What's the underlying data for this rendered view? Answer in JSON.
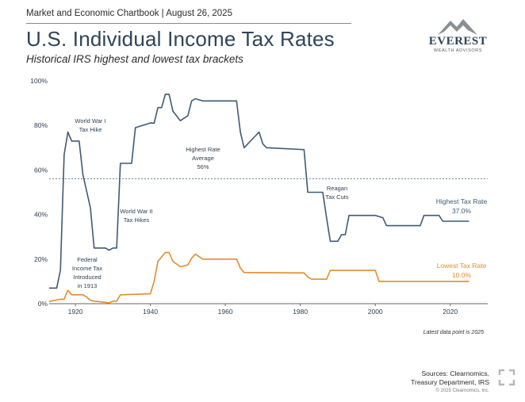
{
  "header": {
    "overline": "Market and Economic Chartbook | August 26, 2025",
    "title": "U.S. Individual Income Tax Rates",
    "subtitle": "Historical IRS highest and lowest tax brackets"
  },
  "logo": {
    "name": "EVEREST",
    "tagline": "WEALTH ADVISORS"
  },
  "footer": {
    "note": "Latest data point is 2025",
    "sources_line1": "Sources: Clearnomics,",
    "sources_line2": "Treasury Department, IRS",
    "copyright": "© 2025 Clearnomics, Inc."
  },
  "colors": {
    "highest": "#3f5a72",
    "lowest": "#e58c2e",
    "axis": "#666666",
    "average": "#3f5a72"
  },
  "chart_data": {
    "type": "line",
    "xlim": [
      1913,
      2030
    ],
    "ylim": [
      0,
      100
    ],
    "x_ticks": [
      "1920",
      "1940",
      "1960",
      "1980",
      "2000",
      "2020"
    ],
    "y_ticks": [
      "0%",
      "20%",
      "40%",
      "60%",
      "80%",
      "100%"
    ],
    "grid": false,
    "series": [
      {
        "name": "Highest Tax Rate",
        "label_line1": "Highest Tax Rate",
        "label_line2": "37.0%",
        "points": [
          [
            1913,
            7
          ],
          [
            1915,
            7
          ],
          [
            1916,
            15
          ],
          [
            1917,
            67
          ],
          [
            1918,
            77
          ],
          [
            1919,
            73
          ],
          [
            1921,
            73
          ],
          [
            1922,
            58
          ],
          [
            1924,
            43
          ],
          [
            1925,
            25
          ],
          [
            1928,
            25
          ],
          [
            1929,
            24
          ],
          [
            1930,
            25
          ],
          [
            1931,
            25
          ],
          [
            1932,
            63
          ],
          [
            1935,
            63
          ],
          [
            1936,
            79
          ],
          [
            1940,
            81.1
          ],
          [
            1941,
            81
          ],
          [
            1942,
            88
          ],
          [
            1943,
            88
          ],
          [
            1944,
            94
          ],
          [
            1945,
            94
          ],
          [
            1946,
            86.45
          ],
          [
            1948,
            82.13
          ],
          [
            1950,
            84.36
          ],
          [
            1951,
            91
          ],
          [
            1952,
            92
          ],
          [
            1954,
            91
          ],
          [
            1963,
            91
          ],
          [
            1964,
            77
          ],
          [
            1965,
            70
          ],
          [
            1968,
            75.25
          ],
          [
            1969,
            77
          ],
          [
            1970,
            71.75
          ],
          [
            1971,
            70
          ],
          [
            1981,
            69.13
          ],
          [
            1982,
            50
          ],
          [
            1986,
            50
          ],
          [
            1987,
            38.5
          ],
          [
            1988,
            28
          ],
          [
            1990,
            28
          ],
          [
            1991,
            31
          ],
          [
            1992,
            31
          ],
          [
            1993,
            39.6
          ],
          [
            2000,
            39.6
          ],
          [
            2001,
            39.1
          ],
          [
            2002,
            38.6
          ],
          [
            2003,
            35
          ],
          [
            2012,
            35
          ],
          [
            2013,
            39.6
          ],
          [
            2017,
            39.6
          ],
          [
            2018,
            37
          ],
          [
            2025,
            37
          ]
        ]
      },
      {
        "name": "Lowest Tax Rate",
        "label_line1": "Lowest Tax Rate",
        "label_line2": "10.0%",
        "points": [
          [
            1913,
            1
          ],
          [
            1916,
            2
          ],
          [
            1917,
            2
          ],
          [
            1918,
            6
          ],
          [
            1919,
            4
          ],
          [
            1922,
            4
          ],
          [
            1923,
            3
          ],
          [
            1924,
            1.5
          ],
          [
            1925,
            1.125
          ],
          [
            1929,
            0.375
          ],
          [
            1930,
            1.125
          ],
          [
            1931,
            1.125
          ],
          [
            1932,
            4
          ],
          [
            1940,
            4.4
          ],
          [
            1941,
            10
          ],
          [
            1942,
            19
          ],
          [
            1944,
            23
          ],
          [
            1945,
            23
          ],
          [
            1946,
            19
          ],
          [
            1948,
            16.6
          ],
          [
            1950,
            17.4
          ],
          [
            1951,
            20.4
          ],
          [
            1952,
            22.2
          ],
          [
            1954,
            20
          ],
          [
            1963,
            20
          ],
          [
            1964,
            16
          ],
          [
            1965,
            14
          ],
          [
            1981,
            13.825
          ],
          [
            1982,
            12
          ],
          [
            1983,
            11
          ],
          [
            1986,
            11
          ],
          [
            1987,
            11
          ],
          [
            1988,
            15
          ],
          [
            2000,
            15
          ],
          [
            2001,
            10
          ],
          [
            2025,
            10
          ]
        ]
      }
    ],
    "average": {
      "value": 56,
      "label_line1": "Highest Rate",
      "label_line2": "Average",
      "label_line3": "56%"
    },
    "annotations": [
      {
        "key": "ww1",
        "lines": [
          "World War I",
          "Tax Hike"
        ]
      },
      {
        "key": "ww2",
        "lines": [
          "World War II",
          "Tax Hikes"
        ]
      },
      {
        "key": "federal",
        "lines": [
          "Federal",
          "Income Tax",
          "Introduced",
          "in 1913"
        ]
      },
      {
        "key": "reagan",
        "lines": [
          "Reagan",
          "Tax Cuts"
        ]
      }
    ]
  }
}
